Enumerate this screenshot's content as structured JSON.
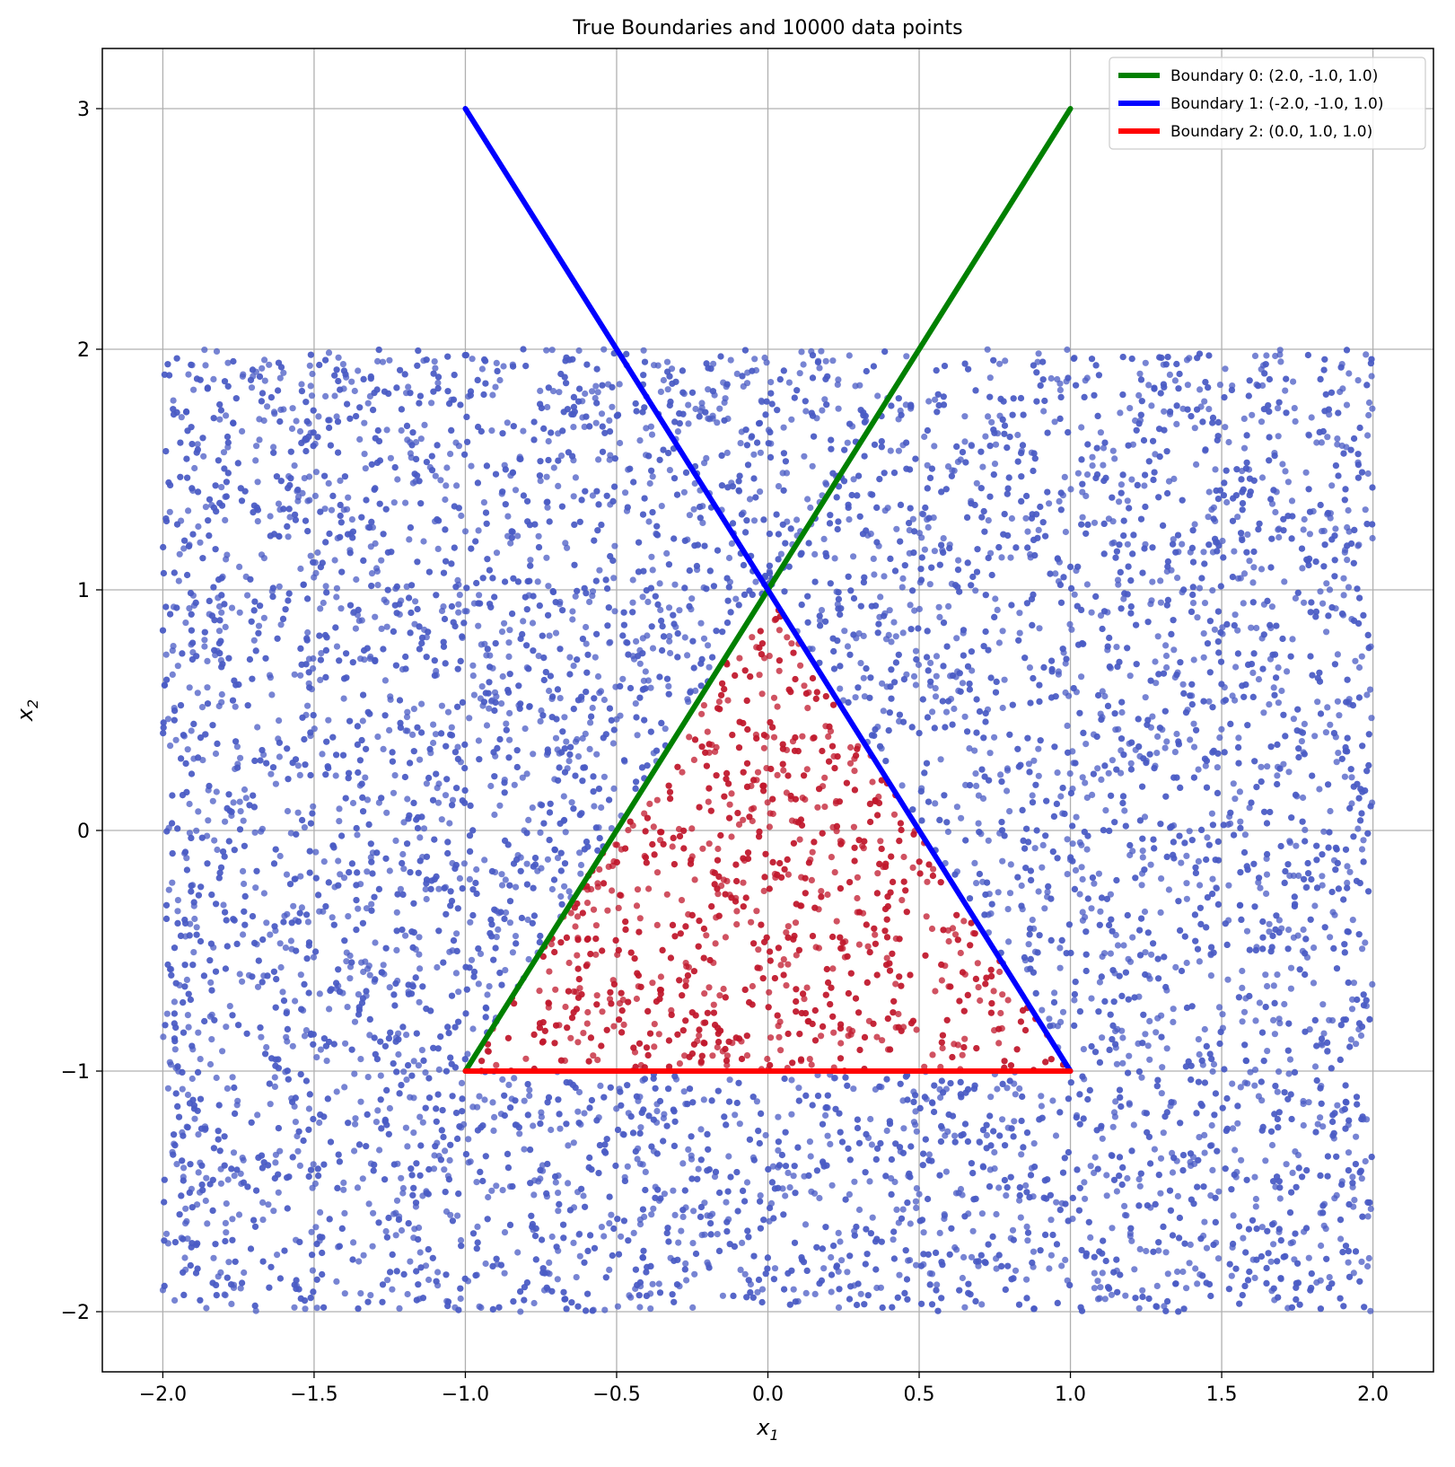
{
  "chart_data": {
    "type": "scatter",
    "title": "True Boundaries and 10000 data points",
    "xlabel_base": "x",
    "xlabel_sub": "1",
    "ylabel_base": "x",
    "ylabel_sub": "2",
    "xlim": [
      -2.2,
      2.2
    ],
    "ylim": [
      -2.25,
      3.25
    ],
    "xticks": [
      -2.0,
      -1.5,
      -1.0,
      -0.5,
      0.0,
      0.5,
      1.0,
      1.5,
      2.0
    ],
    "xtick_labels": [
      "−2.0",
      "−1.5",
      "−1.0",
      "−0.5",
      "0.0",
      "0.5",
      "1.0",
      "1.5",
      "2.0"
    ],
    "yticks": [
      -2,
      -1,
      0,
      1,
      2,
      3
    ],
    "ytick_labels": [
      "−2",
      "−1",
      "0",
      "1",
      "2",
      "3"
    ],
    "grid": true,
    "legend_position": "top-right",
    "points": {
      "count": 10000,
      "x_range": [
        -2.0,
        2.0
      ],
      "y_range": [
        -2.0,
        2.0
      ],
      "class_inside_color": "#c0182c",
      "class_outside_color": "#4a5bc4",
      "marker_opacity": 0.75
    },
    "series": [
      {
        "name": "Boundary 0: (2.0, -1.0, 1.0)",
        "color": "#008000",
        "x": [
          -1.0,
          1.0
        ],
        "y": [
          -1.0,
          3.0
        ]
      },
      {
        "name": "Boundary 1: (-2.0, -1.0, 1.0)",
        "color": "#0000ff",
        "x": [
          -1.0,
          1.0
        ],
        "y": [
          3.0,
          -1.0
        ]
      },
      {
        "name": "Boundary 2: (0.0, 1.0, 1.0)",
        "color": "#ff0000",
        "x": [
          -1.0,
          1.0
        ],
        "y": [
          -1.0,
          -1.0
        ]
      }
    ]
  }
}
